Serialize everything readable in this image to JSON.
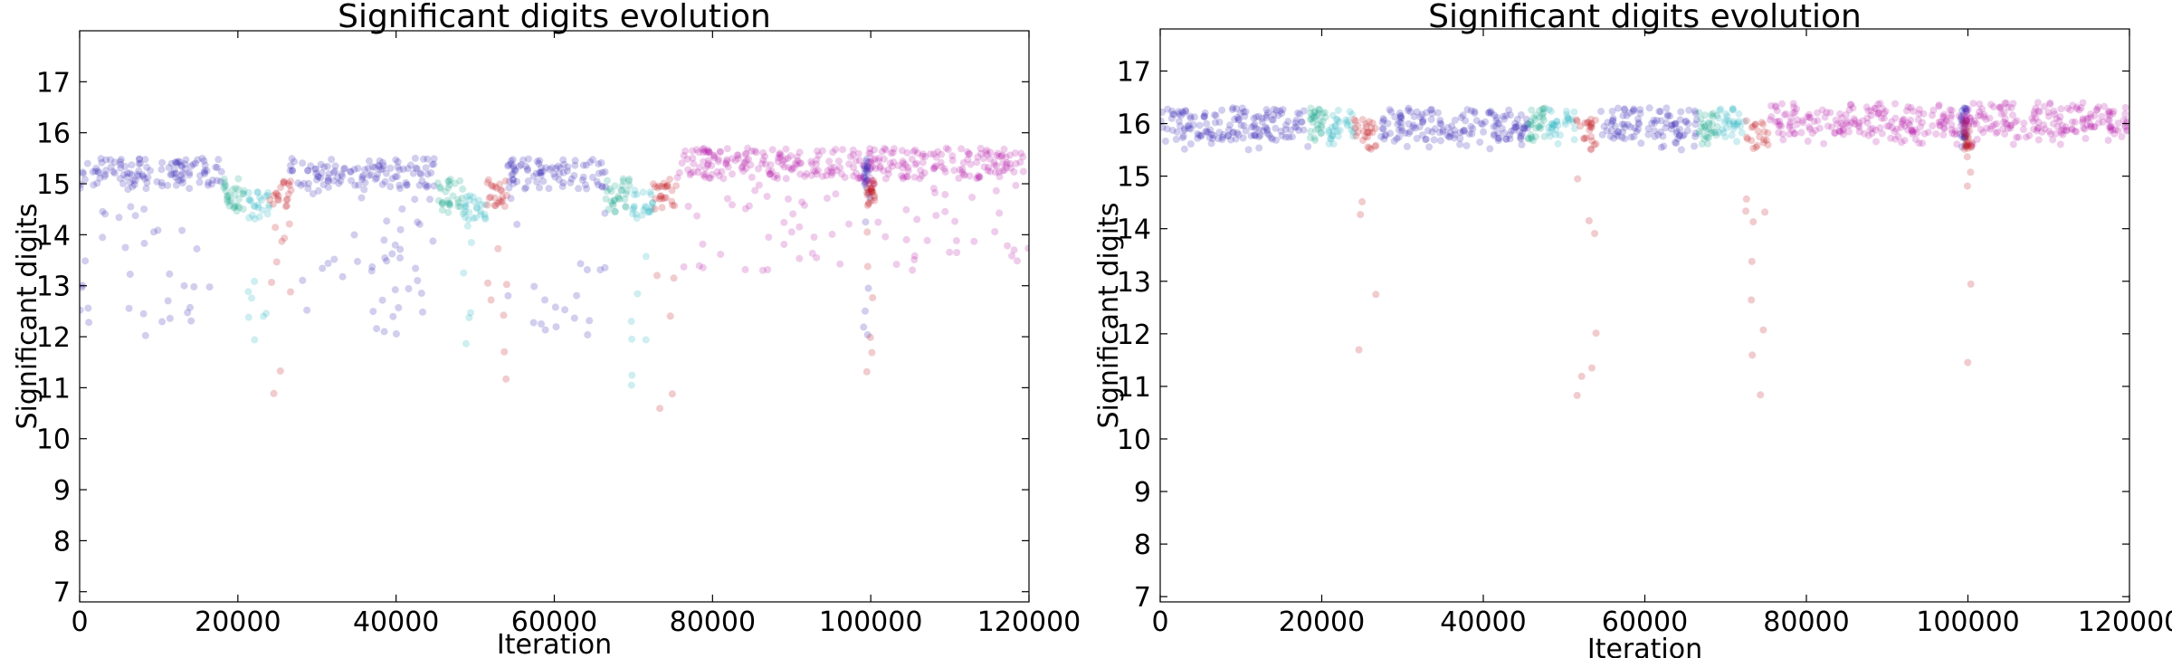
{
  "chart_data": [
    {
      "type": "scatter",
      "title": "Significant digits evolution",
      "xlabel": "Iteration",
      "ylabel": "Significant digits",
      "xlim": [
        0,
        120000
      ],
      "ylim": [
        6.8,
        18
      ],
      "xticks": [
        "0",
        "20000",
        "40000",
        "60000",
        "80000",
        "100000",
        "120000"
      ],
      "yticks": [
        "7",
        "8",
        "9",
        "10",
        "11",
        "12",
        "13",
        "14",
        "15",
        "16",
        "17"
      ],
      "grid": false,
      "series": [
        {
          "color": "#2e1fb0",
          "segments": [
            [
              0,
              18000
            ],
            [
              26500,
              45000
            ],
            [
              54000,
              66500
            ],
            [
              99000,
              100000
            ]
          ],
          "level": 15.2,
          "min": 12.0
        },
        {
          "color": "#12a589",
          "segments": [
            [
              18000,
              21000
            ],
            [
              45000,
              48500
            ],
            [
              66500,
              69500
            ]
          ],
          "level": 14.8,
          "min": 14.4
        },
        {
          "color": "#1fb0bd",
          "segments": [
            [
              21000,
              24000
            ],
            [
              48500,
              51500
            ],
            [
              69500,
              72500
            ]
          ],
          "level": 14.6,
          "min": 11.0
        },
        {
          "color": "#c0101a",
          "segments": [
            [
              24000,
              27000
            ],
            [
              51500,
              54000
            ],
            [
              72500,
              75500
            ],
            [
              99500,
              100500
            ]
          ],
          "level": 14.8,
          "min": 10.5
        },
        {
          "color": "#b818a8",
          "segments": [
            [
              75500,
              120000
            ]
          ],
          "level": 15.4,
          "min": 13.3
        }
      ]
    },
    {
      "type": "scatter",
      "title": "Significant digits evolution",
      "xlabel": "Iteration",
      "ylabel": "Significant digits",
      "xlim": [
        0,
        120000
      ],
      "ylim": [
        6.9,
        17.8
      ],
      "xticks": [
        "0",
        "20000",
        "40000",
        "60000",
        "80000",
        "100000",
        "120000"
      ],
      "yticks": [
        "7",
        "8",
        "9",
        "10",
        "11",
        "12",
        "13",
        "14",
        "15",
        "16",
        "17"
      ],
      "grid": false,
      "series": [
        {
          "color": "#2e1fb0",
          "segments": [
            [
              0,
              18500
            ],
            [
              27000,
              45500
            ],
            [
              54500,
              66500
            ],
            [
              99000,
              100000
            ]
          ],
          "level": 16.0,
          "min": 15.5
        },
        {
          "color": "#12a589",
          "segments": [
            [
              18500,
              20500
            ],
            [
              45500,
              48000
            ],
            [
              66500,
              69000
            ]
          ],
          "level": 16.0,
          "min": 15.6
        },
        {
          "color": "#1fb0bd",
          "segments": [
            [
              20500,
              24000
            ],
            [
              48000,
              51500
            ],
            [
              69000,
              72500
            ]
          ],
          "level": 16.0,
          "min": 15.6
        },
        {
          "color": "#c0101a",
          "segments": [
            [
              24000,
              27000
            ],
            [
              51500,
              54000
            ],
            [
              72500,
              75500
            ],
            [
              99500,
              100500
            ]
          ],
          "level": 15.8,
          "min": 10.5
        },
        {
          "color": "#b818a8",
          "segments": [
            [
              75500,
              120000
            ]
          ],
          "level": 16.1,
          "min": 15.6
        }
      ]
    }
  ]
}
